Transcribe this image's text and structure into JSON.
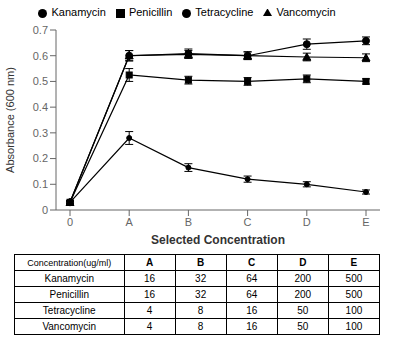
{
  "chart_data": {
    "type": "line",
    "xlabel": "Selected Concentration",
    "ylabel": "Absorbance (600 nm)",
    "categories": [
      "0",
      "A",
      "B",
      "C",
      "D",
      "E"
    ],
    "series": [
      {
        "name": "Tetracycline",
        "color": "#000000",
        "marker": "circle",
        "line_style": "solid",
        "values": [
          0.03,
          0.28,
          0.165,
          0.12,
          0.1,
          0.07
        ],
        "errors": [
          0.005,
          0.025,
          0.015,
          0.012,
          0.01,
          0.008
        ]
      },
      {
        "name": "Penicillin",
        "color": "#000000",
        "marker": "square",
        "line_style": "solid",
        "values": [
          0.03,
          0.525,
          0.505,
          0.5,
          0.51,
          0.5
        ],
        "errors": [
          0.005,
          0.025,
          0.015,
          0.015,
          0.015,
          0.01
        ]
      },
      {
        "name": "Vancomycin",
        "color": "#000000",
        "marker": "triangle",
        "line_style": "solid",
        "values": [
          0.03,
          0.6,
          0.605,
          0.6,
          0.595,
          0.592
        ],
        "errors": [
          0.005,
          0.02,
          0.015,
          0.015,
          0.015,
          0.015
        ]
      },
      {
        "name": "Kanamycin",
        "color": "#000000",
        "marker": "circle",
        "line_style": "solid",
        "values": [
          0.03,
          0.6,
          0.608,
          0.6,
          0.645,
          0.658
        ],
        "errors": [
          0.005,
          0.02,
          0.018,
          0.015,
          0.02,
          0.015
        ]
      }
    ],
    "ylim": [
      0,
      0.7
    ],
    "yticks": [
      0,
      0.1,
      0.2,
      0.3,
      0.4,
      0.5,
      0.6,
      0.7
    ],
    "grid": false,
    "legend": "top",
    "table": {
      "header": [
        "Concentration(ug/ml)",
        "A",
        "B",
        "C",
        "D",
        "E"
      ],
      "rows": [
        [
          "Kanamycin",
          "16",
          "32",
          "64",
          "200",
          "500"
        ],
        [
          "Penicillin",
          "16",
          "32",
          "64",
          "200",
          "500"
        ],
        [
          "Tetracycline",
          "4",
          "8",
          "16",
          "50",
          "100"
        ],
        [
          "Vancomycin",
          "4",
          "8",
          "16",
          "50",
          "100"
        ]
      ]
    }
  }
}
